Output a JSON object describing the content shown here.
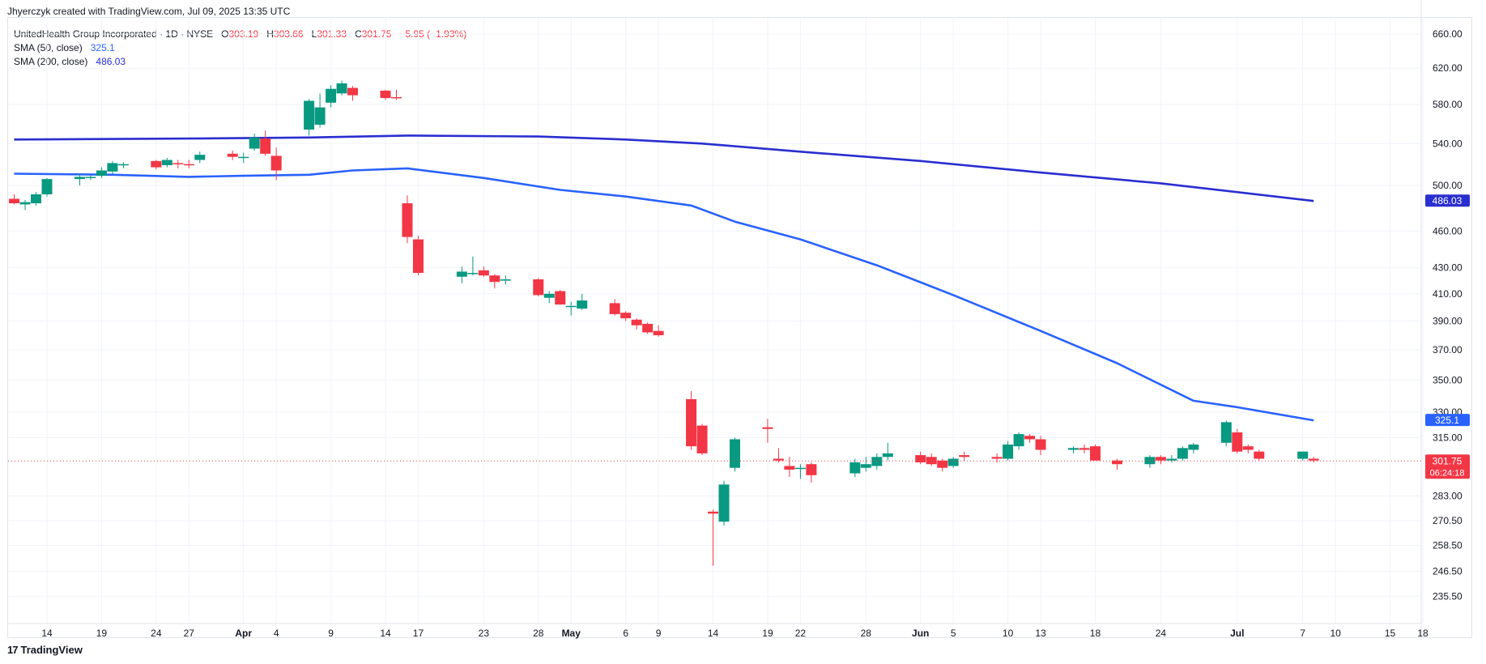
{
  "header": {
    "credit": "Jhyerczyk created with TradingView.com, Jul 09, 2025 13:35 UTC"
  },
  "legend": {
    "symbol": "UnitedHealth Group Incorporated · 1D · NYSE",
    "o_label": "O",
    "o_value": "303.19",
    "h_label": "H",
    "h_value": "303.66",
    "l_label": "L",
    "l_value": "301.33",
    "c_label": "C",
    "c_value": "301.75",
    "change": "−5.95 (−1.93%)",
    "sma50_label": "SMA (50, close)",
    "sma50_value": "325.1",
    "sma200_label": "SMA (200, close)",
    "sma200_value": "486.03"
  },
  "footer": {
    "brand": "TradingView",
    "logo": "17"
  },
  "colors": {
    "up": "#089981",
    "down": "#f23645",
    "sma50": "#2962ff",
    "sma200": "#2a2ed0",
    "grid": "#f0f3fa",
    "axis_text": "#131722"
  },
  "chart_data": {
    "type": "candlestick",
    "title": "UnitedHealth Group Incorporated · 1D · NYSE",
    "yscale": "log",
    "ylim": [
      224,
      680
    ],
    "y_ticks": [
      "660.00",
      "620.00",
      "580.00",
      "540.00",
      "500.00",
      "460.00",
      "430.00",
      "410.00",
      "390.00",
      "370.00",
      "350.00",
      "330.00",
      "315.00",
      "283.00",
      "270.50",
      "258.50",
      "246.50",
      "235.50"
    ],
    "x_ticks": [
      {
        "label": "14",
        "date": "2025-03-14"
      },
      {
        "label": "19",
        "date": "2025-03-19"
      },
      {
        "label": "24",
        "date": "2025-03-24"
      },
      {
        "label": "27",
        "date": "2025-03-27"
      },
      {
        "label": "Apr",
        "date": "2025-04-01",
        "bold": true
      },
      {
        "label": "4",
        "date": "2025-04-04"
      },
      {
        "label": "9",
        "date": "2025-04-09"
      },
      {
        "label": "14",
        "date": "2025-04-14"
      },
      {
        "label": "17",
        "date": "2025-04-17"
      },
      {
        "label": "23",
        "date": "2025-04-23"
      },
      {
        "label": "28",
        "date": "2025-04-28"
      },
      {
        "label": "May",
        "date": "2025-05-01",
        "bold": true
      },
      {
        "label": "6",
        "date": "2025-05-06"
      },
      {
        "label": "9",
        "date": "2025-05-09"
      },
      {
        "label": "14",
        "date": "2025-05-14"
      },
      {
        "label": "19",
        "date": "2025-05-19"
      },
      {
        "label": "22",
        "date": "2025-05-22"
      },
      {
        "label": "28",
        "date": "2025-05-28"
      },
      {
        "label": "Jun",
        "date": "2025-06-02",
        "bold": true
      },
      {
        "label": "5",
        "date": "2025-06-05"
      },
      {
        "label": "10",
        "date": "2025-06-10"
      },
      {
        "label": "13",
        "date": "2025-06-13"
      },
      {
        "label": "18",
        "date": "2025-06-18"
      },
      {
        "label": "24",
        "date": "2025-06-24"
      },
      {
        "label": "Jul",
        "date": "2025-07-01",
        "bold": true
      },
      {
        "label": "7",
        "date": "2025-07-07"
      },
      {
        "label": "10",
        "date": "2025-07-10"
      },
      {
        "label": "15",
        "date": "2025-07-15"
      },
      {
        "label": "18",
        "date": "2025-07-18"
      }
    ],
    "last_price": "301.75",
    "countdown": "06:24:18",
    "sma50_badge": "325.1",
    "sma200_badge": "486.03",
    "candles": [
      {
        "d": "2025-03-11",
        "o": 488,
        "h": 492,
        "l": 483,
        "c": 484
      },
      {
        "d": "2025-03-12",
        "o": 483,
        "h": 487,
        "l": 478,
        "c": 485
      },
      {
        "d": "2025-03-13",
        "o": 484,
        "h": 494,
        "l": 482,
        "c": 492
      },
      {
        "d": "2025-03-14",
        "o": 492,
        "h": 507,
        "l": 490,
        "c": 506
      },
      {
        "d": "2025-03-17",
        "o": 506,
        "h": 511,
        "l": 500,
        "c": 508
      },
      {
        "d": "2025-03-18",
        "o": 507,
        "h": 510,
        "l": 505,
        "c": 508
      },
      {
        "d": "2025-03-19",
        "o": 509,
        "h": 517,
        "l": 507,
        "c": 514
      },
      {
        "d": "2025-03-20",
        "o": 513,
        "h": 523,
        "l": 510,
        "c": 521
      },
      {
        "d": "2025-03-21",
        "o": 520,
        "h": 522,
        "l": 516,
        "c": 520
      },
      {
        "d": "2025-03-24",
        "o": 523,
        "h": 524,
        "l": 515,
        "c": 517
      },
      {
        "d": "2025-03-25",
        "o": 519,
        "h": 526,
        "l": 517,
        "c": 524
      },
      {
        "d": "2025-03-26",
        "o": 521,
        "h": 524,
        "l": 516,
        "c": 520
      },
      {
        "d": "2025-03-27",
        "o": 520,
        "h": 524,
        "l": 516,
        "c": 519
      },
      {
        "d": "2025-03-28",
        "o": 524,
        "h": 532,
        "l": 521,
        "c": 529
      },
      {
        "d": "2025-03-31",
        "o": 530,
        "h": 533,
        "l": 524,
        "c": 527
      },
      {
        "d": "2025-04-01",
        "o": 527,
        "h": 531,
        "l": 521,
        "c": 527
      },
      {
        "d": "2025-04-02",
        "o": 535,
        "h": 550,
        "l": 533,
        "c": 546
      },
      {
        "d": "2025-04-03",
        "o": 545,
        "h": 553,
        "l": 528,
        "c": 530
      },
      {
        "d": "2025-04-04",
        "o": 528,
        "h": 536,
        "l": 505,
        "c": 514
      },
      {
        "d": "2025-04-07",
        "o": 554,
        "h": 586,
        "l": 548,
        "c": 584
      },
      {
        "d": "2025-04-08",
        "o": 559,
        "h": 592,
        "l": 556,
        "c": 577
      },
      {
        "d": "2025-04-09",
        "o": 582,
        "h": 601,
        "l": 577,
        "c": 597
      },
      {
        "d": "2025-04-10",
        "o": 592,
        "h": 606,
        "l": 590,
        "c": 603
      },
      {
        "d": "2025-04-11",
        "o": 598,
        "h": 600,
        "l": 584,
        "c": 590
      },
      {
        "d": "2025-04-14",
        "o": 595,
        "h": 596,
        "l": 585,
        "c": 587
      },
      {
        "d": "2025-04-15",
        "o": 588,
        "h": 596,
        "l": 585,
        "c": 587
      },
      {
        "d": "2025-04-16",
        "o": 484,
        "h": 491,
        "l": 450,
        "c": 455
      },
      {
        "d": "2025-04-17",
        "o": 453,
        "h": 456,
        "l": 424,
        "c": 426
      },
      {
        "d": "2025-04-21",
        "o": 423,
        "h": 431,
        "l": 418,
        "c": 427
      },
      {
        "d": "2025-04-22",
        "o": 426,
        "h": 439,
        "l": 424,
        "c": 426
      },
      {
        "d": "2025-04-23",
        "o": 428,
        "h": 431,
        "l": 423,
        "c": 424
      },
      {
        "d": "2025-04-24",
        "o": 424,
        "h": 425,
        "l": 414,
        "c": 419
      },
      {
        "d": "2025-04-25",
        "o": 420,
        "h": 424,
        "l": 417,
        "c": 421
      },
      {
        "d": "2025-04-28",
        "o": 421,
        "h": 422,
        "l": 408,
        "c": 409
      },
      {
        "d": "2025-04-29",
        "o": 407,
        "h": 412,
        "l": 403,
        "c": 410
      },
      {
        "d": "2025-04-30",
        "o": 412,
        "h": 413,
        "l": 402,
        "c": 402
      },
      {
        "d": "2025-05-01",
        "o": 401,
        "h": 404,
        "l": 394,
        "c": 401
      },
      {
        "d": "2025-05-02",
        "o": 399,
        "h": 410,
        "l": 398,
        "c": 405
      },
      {
        "d": "2025-05-05",
        "o": 403,
        "h": 406,
        "l": 394,
        "c": 395
      },
      {
        "d": "2025-05-06",
        "o": 396,
        "h": 397,
        "l": 390,
        "c": 392
      },
      {
        "d": "2025-05-07",
        "o": 391,
        "h": 392,
        "l": 384,
        "c": 387
      },
      {
        "d": "2025-05-08",
        "o": 388,
        "h": 389,
        "l": 381,
        "c": 382
      },
      {
        "d": "2025-05-09",
        "o": 383,
        "h": 387,
        "l": 379,
        "c": 380
      },
      {
        "d": "2025-05-12",
        "o": 338,
        "h": 343,
        "l": 308,
        "c": 310
      },
      {
        "d": "2025-05-13",
        "o": 322,
        "h": 323,
        "l": 305,
        "c": 306
      },
      {
        "d": "2025-05-14",
        "o": 275,
        "h": 276,
        "l": 249,
        "c": 274
      },
      {
        "d": "2025-05-15",
        "o": 270,
        "h": 291,
        "l": 268,
        "c": 289
      },
      {
        "d": "2025-05-16",
        "o": 298,
        "h": 315,
        "l": 296,
        "c": 314
      },
      {
        "d": "2025-05-19",
        "o": 321,
        "h": 326,
        "l": 312,
        "c": 320
      },
      {
        "d": "2025-05-20",
        "o": 303,
        "h": 309,
        "l": 301,
        "c": 302
      },
      {
        "d": "2025-05-21",
        "o": 299,
        "h": 304,
        "l": 293,
        "c": 297
      },
      {
        "d": "2025-05-22",
        "o": 298,
        "h": 300,
        "l": 292,
        "c": 298
      },
      {
        "d": "2025-05-23",
        "o": 300,
        "h": 301,
        "l": 290,
        "c": 294
      },
      {
        "d": "2025-05-27",
        "o": 295,
        "h": 303,
        "l": 293,
        "c": 301
      },
      {
        "d": "2025-05-28",
        "o": 298,
        "h": 304,
        "l": 296,
        "c": 300
      },
      {
        "d": "2025-05-29",
        "o": 299,
        "h": 306,
        "l": 297,
        "c": 304
      },
      {
        "d": "2025-05-30",
        "o": 304,
        "h": 312,
        "l": 302,
        "c": 306
      },
      {
        "d": "2025-06-02",
        "o": 305,
        "h": 307,
        "l": 300,
        "c": 301
      },
      {
        "d": "2025-06-03",
        "o": 304,
        "h": 306,
        "l": 299,
        "c": 300
      },
      {
        "d": "2025-06-04",
        "o": 302,
        "h": 303,
        "l": 296,
        "c": 298
      },
      {
        "d": "2025-06-05",
        "o": 299,
        "h": 304,
        "l": 298,
        "c": 303
      },
      {
        "d": "2025-06-06",
        "o": 305,
        "h": 307,
        "l": 302,
        "c": 304
      },
      {
        "d": "2025-06-09",
        "o": 304,
        "h": 306,
        "l": 301,
        "c": 303
      },
      {
        "d": "2025-06-10",
        "o": 303,
        "h": 313,
        "l": 302,
        "c": 311
      },
      {
        "d": "2025-06-11",
        "o": 310,
        "h": 318,
        "l": 308,
        "c": 317
      },
      {
        "d": "2025-06-12",
        "o": 316,
        "h": 317,
        "l": 312,
        "c": 314
      },
      {
        "d": "2025-06-13",
        "o": 314,
        "h": 316,
        "l": 305,
        "c": 308
      },
      {
        "d": "2025-06-16",
        "o": 308,
        "h": 310,
        "l": 306,
        "c": 309
      },
      {
        "d": "2025-06-17",
        "o": 309,
        "h": 311,
        "l": 306,
        "c": 308
      },
      {
        "d": "2025-06-18",
        "o": 310,
        "h": 311,
        "l": 302,
        "c": 302
      },
      {
        "d": "2025-06-20",
        "o": 302,
        "h": 303,
        "l": 297,
        "c": 300
      },
      {
        "d": "2025-06-23",
        "o": 300,
        "h": 305,
        "l": 298,
        "c": 304
      },
      {
        "d": "2025-06-24",
        "o": 304,
        "h": 305,
        "l": 300,
        "c": 302
      },
      {
        "d": "2025-06-25",
        "o": 302,
        "h": 305,
        "l": 301,
        "c": 303
      },
      {
        "d": "2025-06-26",
        "o": 303,
        "h": 310,
        "l": 302,
        "c": 309
      },
      {
        "d": "2025-06-27",
        "o": 308,
        "h": 312,
        "l": 306,
        "c": 311
      },
      {
        "d": "2025-06-30",
        "o": 312,
        "h": 325,
        "l": 310,
        "c": 324
      },
      {
        "d": "2025-07-01",
        "o": 318,
        "h": 320,
        "l": 306,
        "c": 307
      },
      {
        "d": "2025-07-02",
        "o": 310,
        "h": 311,
        "l": 306,
        "c": 308
      },
      {
        "d": "2025-07-03",
        "o": 307,
        "h": 308,
        "l": 302,
        "c": 303
      },
      {
        "d": "2025-07-07",
        "o": 303,
        "h": 307,
        "l": 302,
        "c": 307
      },
      {
        "d": "2025-07-08",
        "o": 303,
        "h": 304,
        "l": 301,
        "c": 302
      }
    ],
    "sma50": [
      {
        "d": "2025-03-11",
        "v": 511
      },
      {
        "d": "2025-03-20",
        "v": 510
      },
      {
        "d": "2025-03-27",
        "v": 508
      },
      {
        "d": "2025-04-01",
        "v": 509
      },
      {
        "d": "2025-04-07",
        "v": 510
      },
      {
        "d": "2025-04-11",
        "v": 514
      },
      {
        "d": "2025-04-16",
        "v": 516
      },
      {
        "d": "2025-04-23",
        "v": 507
      },
      {
        "d": "2025-04-30",
        "v": 496
      },
      {
        "d": "2025-05-06",
        "v": 490
      },
      {
        "d": "2025-05-12",
        "v": 482
      },
      {
        "d": "2025-05-16",
        "v": 468
      },
      {
        "d": "2025-05-22",
        "v": 453
      },
      {
        "d": "2025-05-29",
        "v": 432
      },
      {
        "d": "2025-06-05",
        "v": 409
      },
      {
        "d": "2025-06-13",
        "v": 383
      },
      {
        "d": "2025-06-20",
        "v": 361
      },
      {
        "d": "2025-06-27",
        "v": 337
      },
      {
        "d": "2025-07-01",
        "v": 333
      },
      {
        "d": "2025-07-08",
        "v": 325.1
      }
    ],
    "sma200": [
      {
        "d": "2025-03-11",
        "v": 544
      },
      {
        "d": "2025-03-27",
        "v": 545
      },
      {
        "d": "2025-04-07",
        "v": 546
      },
      {
        "d": "2025-04-16",
        "v": 548
      },
      {
        "d": "2025-04-28",
        "v": 547
      },
      {
        "d": "2025-05-06",
        "v": 544
      },
      {
        "d": "2025-05-13",
        "v": 540
      },
      {
        "d": "2025-05-22",
        "v": 532
      },
      {
        "d": "2025-06-02",
        "v": 523
      },
      {
        "d": "2025-06-13",
        "v": 512
      },
      {
        "d": "2025-06-24",
        "v": 502
      },
      {
        "d": "2025-07-08",
        "v": 486.03
      }
    ]
  }
}
